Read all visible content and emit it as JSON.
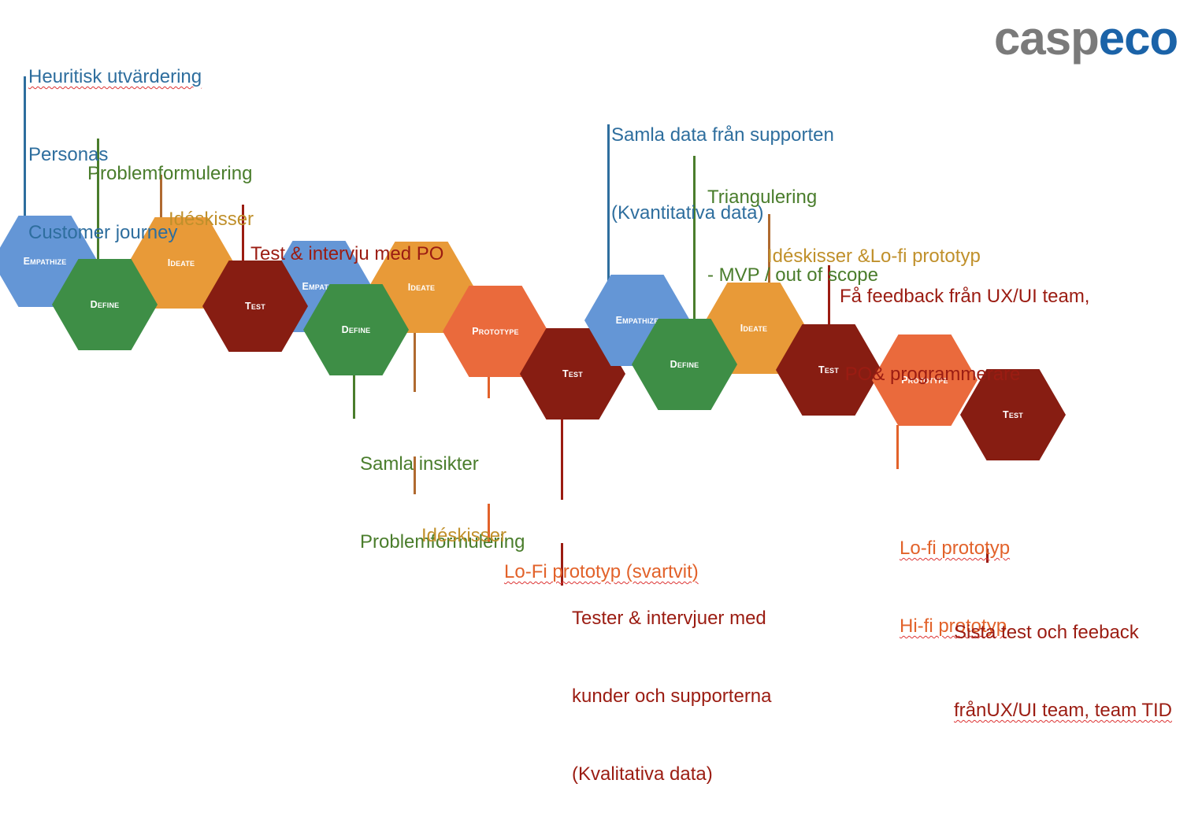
{
  "logo": {
    "part1": "casp",
    "part2": "eco",
    "color1": "#7a7a7a",
    "color2": "#1b63a8"
  },
  "colors": {
    "empathize": "#6496d6",
    "define": "#3e8e46",
    "ideate": "#e89a38",
    "test": "#871d12",
    "prototype": "#ea6a3c"
  },
  "stages": {
    "empathize": "Empathize",
    "define": "Define",
    "ideate": "Ideate",
    "test": "Test",
    "prototype": "Prototype",
    "empathize_cut": "Empathi"
  },
  "notes": {
    "empathize_1": [
      "Heuritisk utvärdering",
      "Personas",
      "Customer journey"
    ],
    "define_1": [
      "Problemformulering"
    ],
    "ideate_1": [
      "Idéskisser"
    ],
    "test_1": [
      "Test & intervju med PO"
    ],
    "define_2": [
      "Samla insikter",
      "Problemformulering"
    ],
    "ideate_2": [
      "Idéskisser"
    ],
    "prototype_2": [
      "Lo-Fi prototyp (svartvit)"
    ],
    "test_2": [
      "Tester & intervjuer med",
      "kunder och supporterna",
      "(Kvalitativa data)"
    ],
    "empathize_3": [
      "Samla data från supporten",
      "(Kvantitativa data)"
    ],
    "define_3": [
      "Triangulering",
      "- MVP / out of scope"
    ],
    "ideate_3": [
      "Idéskisser &Lo-fi prototyp"
    ],
    "test_3": [
      "Få feedback från UX/UI team,",
      " PO& programmerare"
    ],
    "prototype_3": [
      "Lo-fi prototyp",
      "Hi-fi prototyp"
    ],
    "test_4": [
      "Sista test och feeback",
      "frånUX/UI team, team TID"
    ]
  }
}
